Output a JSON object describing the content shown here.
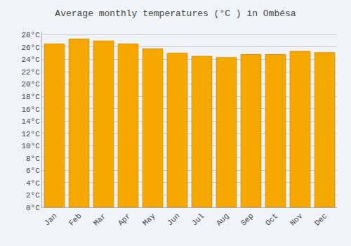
{
  "chart_data": {
    "type": "bar",
    "title": "Average monthly temperatures (°C ) in Ombésa",
    "categories": [
      "Jan",
      "Feb",
      "Mar",
      "Apr",
      "May",
      "Jun",
      "Jul",
      "Aug",
      "Sep",
      "Oct",
      "Nov",
      "Dec"
    ],
    "values": [
      26.5,
      27.3,
      27.0,
      26.5,
      25.7,
      25.0,
      24.5,
      24.3,
      24.8,
      24.8,
      25.3,
      25.1
    ],
    "color": "#F5A800",
    "ylim": [
      0,
      28.5
    ],
    "yticks": [
      {
        "value": 0,
        "label": "0°C"
      },
      {
        "value": 2,
        "label": "2°C"
      },
      {
        "value": 4,
        "label": "4°C"
      },
      {
        "value": 6,
        "label": "6°C"
      },
      {
        "value": 8,
        "label": "8°C"
      },
      {
        "value": 10,
        "label": "10°C"
      },
      {
        "value": 12,
        "label": "12°C"
      },
      {
        "value": 14,
        "label": "14°C"
      },
      {
        "value": 16,
        "label": "16°C"
      },
      {
        "value": 18,
        "label": "18°C"
      },
      {
        "value": 20,
        "label": "20°C"
      },
      {
        "value": 22,
        "label": "22°C"
      },
      {
        "value": 24,
        "label": "24°C"
      },
      {
        "value": 26,
        "label": "26°C"
      },
      {
        "value": 28,
        "label": "28°C"
      }
    ],
    "grid": true
  }
}
